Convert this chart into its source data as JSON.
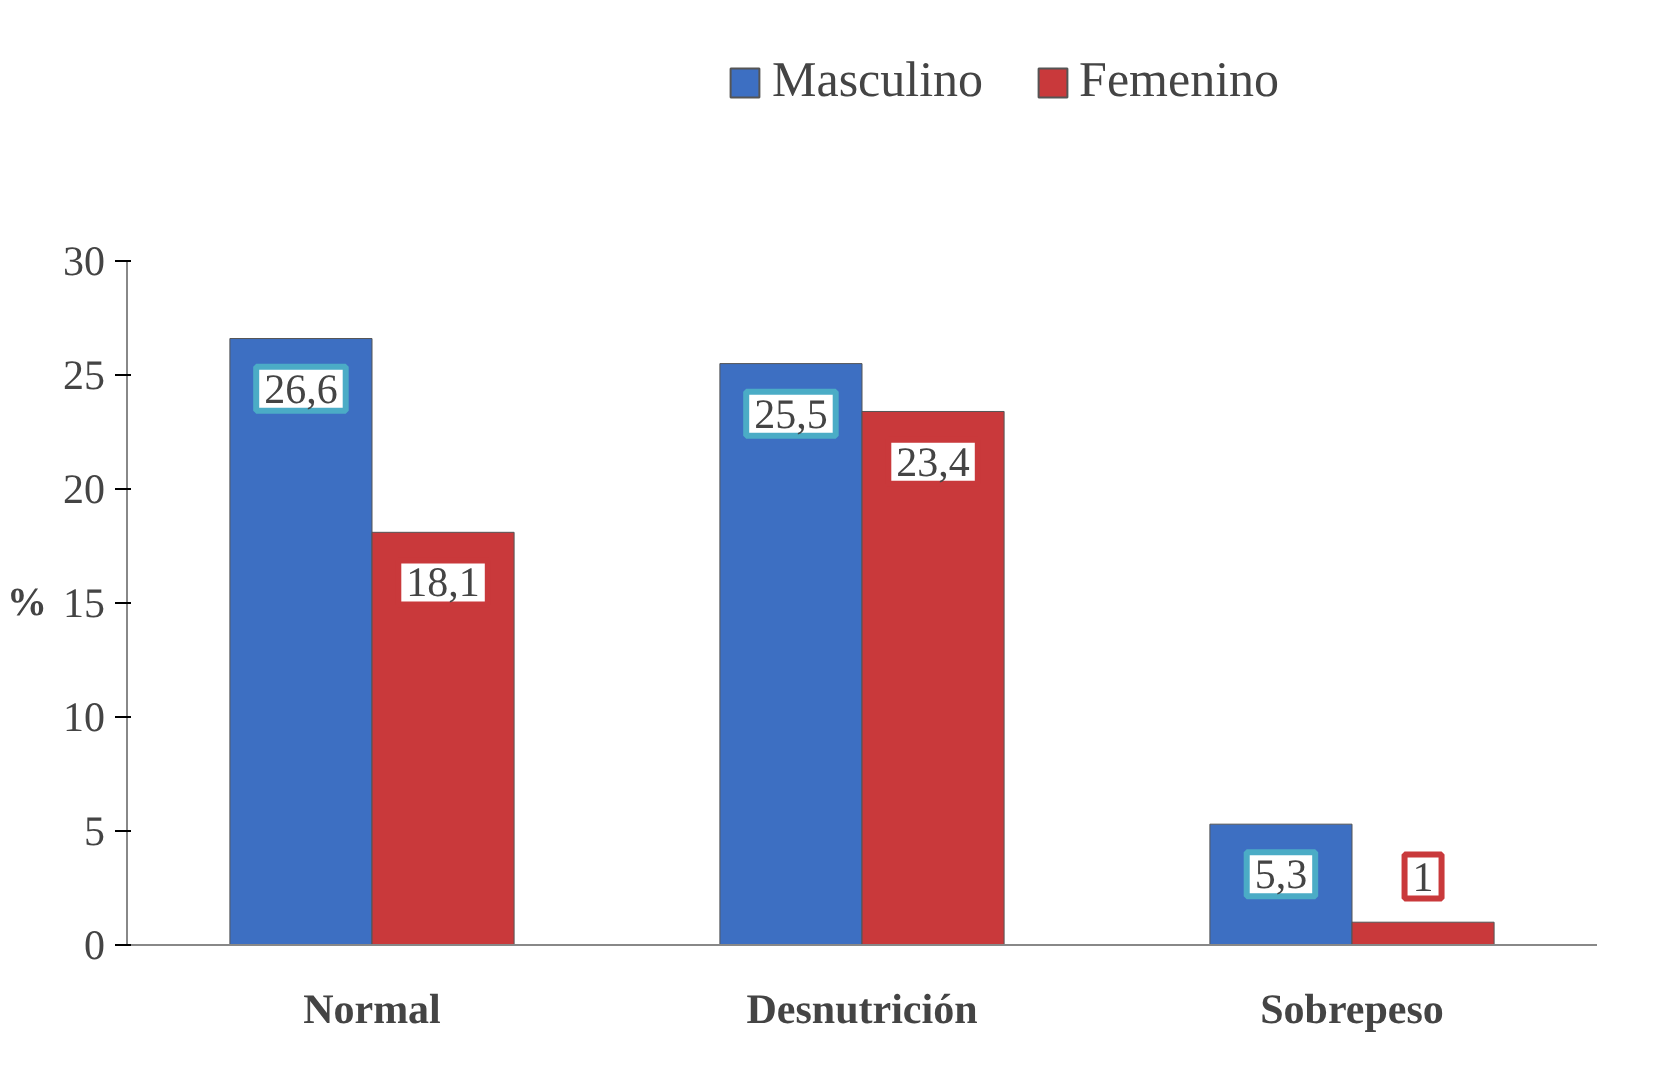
{
  "chart_data": {
    "type": "bar",
    "ylabel": "%",
    "categories": [
      "Normal",
      "Desnutrición",
      "Sobrepeso"
    ],
    "series": [
      {
        "name": "Masculino",
        "color": "#3d6fc2",
        "values": [
          26.6,
          25.5,
          5.3
        ],
        "value_labels": [
          "26,6",
          "25,5",
          "5,3"
        ]
      },
      {
        "name": "Femenino",
        "color": "#c9393b",
        "values": [
          18.1,
          23.4,
          1
        ],
        "value_labels": [
          "18,1",
          "23,4",
          "1"
        ]
      }
    ],
    "ylim": [
      0,
      30
    ],
    "yticks": [
      0,
      5,
      10,
      15,
      20,
      25,
      30
    ],
    "grid": false,
    "legend": "top"
  }
}
